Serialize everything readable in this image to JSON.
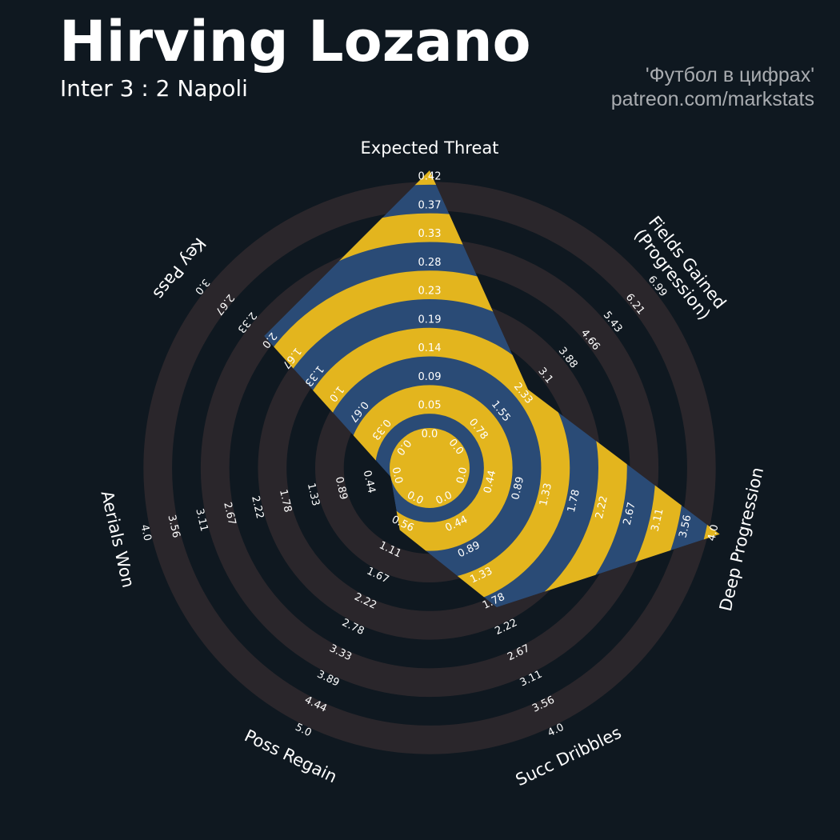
{
  "header": {
    "player_name": "Hirving Lozano",
    "match": "Inter 3 : 2 Napoli",
    "credit_line1": "'Футбол в цифрах'",
    "credit_line2": "patreon.com/markstats"
  },
  "colors": {
    "background": "#0f1820",
    "ring_dark": "#2a262b",
    "polygon_blue": "#2a4b76",
    "polygon_gold": "#e3b51e",
    "text": "#ffffff"
  },
  "chart_data": {
    "type": "radar",
    "title": "Hirving Lozano",
    "subtitle": "Inter 3 : 2 Napoli",
    "axes": [
      {
        "label": "Expected Threat",
        "ticks": [
          "0.0",
          "0.05",
          "0.09",
          "0.14",
          "0.19",
          "0.23",
          "0.28",
          "0.33",
          "0.37",
          "0.42"
        ],
        "value": 0.42
      },
      {
        "label": "Fields Gained\n(Progression)",
        "ticks": [
          "0.0",
          "0.78",
          "1.55",
          "2.33",
          "3.1",
          "3.88",
          "4.66",
          "5.43",
          "6.21",
          "6.99"
        ],
        "value": 2.33
      },
      {
        "label": "Deep Progression",
        "ticks": [
          "0.0",
          "0.44",
          "0.89",
          "1.33",
          "1.78",
          "2.22",
          "2.67",
          "3.11",
          "3.56",
          "4.0"
        ],
        "value": 4.0
      },
      {
        "label": "Succ Dribbles",
        "ticks": [
          "0.0",
          "0.44",
          "0.89",
          "1.33",
          "1.78",
          "2.22",
          "2.67",
          "3.11",
          "3.56",
          "4.0"
        ],
        "value": 1.78
      },
      {
        "label": "Poss Regain",
        "ticks": [
          "0.0",
          "0.56",
          "1.11",
          "1.67",
          "2.22",
          "2.78",
          "3.33",
          "3.89",
          "4.44",
          "5.0"
        ],
        "value": 0.56
      },
      {
        "label": "Aerials Won",
        "ticks": [
          "0.0",
          "0.44",
          "0.89",
          "1.33",
          "1.78",
          "2.22",
          "2.67",
          "3.11",
          "3.56",
          "4.0"
        ],
        "value": 0.0
      },
      {
        "label": "Key Pass",
        "ticks": [
          "0.0",
          "0.33",
          "0.67",
          "1.0",
          "1.33",
          "1.67",
          "2.0",
          "2.33",
          "2.67",
          "3.0"
        ],
        "value": 2.0
      }
    ]
  }
}
